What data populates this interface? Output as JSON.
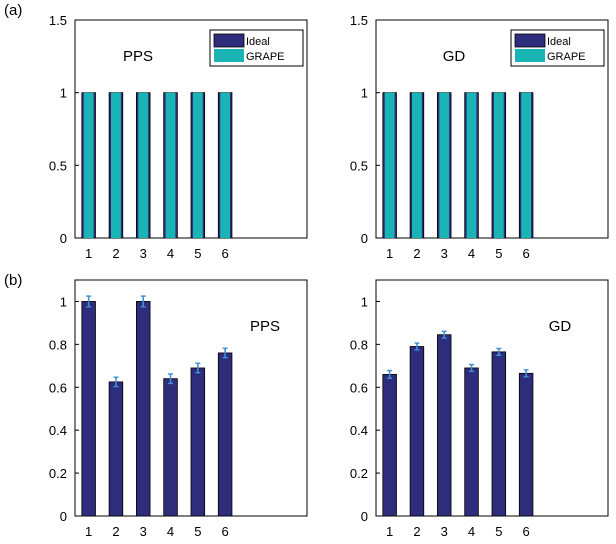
{
  "figure": {
    "panel_labels": [
      "(a)",
      "(b)"
    ]
  },
  "colors": {
    "ideal": "#2e2d7c",
    "grape": "#19b5b5",
    "error_bar": "#3f8fd8",
    "axis": "#000000"
  },
  "chart_data": [
    {
      "type": "bar",
      "inset_label": "PPS",
      "categories": [
        "1",
        "2",
        "3",
        "4",
        "5",
        "6"
      ],
      "xlim": [
        0.5,
        9
      ],
      "ylim": [
        0,
        1.5
      ],
      "yticks": [
        0,
        0.5,
        1,
        1.5
      ],
      "ytick_labels": [
        "0",
        "0.5",
        "1",
        "1.5"
      ],
      "legend": {
        "position": "top-right",
        "entries": [
          "Ideal",
          "GRAPE"
        ]
      },
      "series": [
        {
          "name": "Ideal",
          "values": [
            1,
            1,
            1,
            1,
            1,
            1
          ]
        },
        {
          "name": "GRAPE",
          "values": [
            1,
            1,
            1,
            1,
            1,
            1
          ]
        }
      ]
    },
    {
      "type": "bar",
      "inset_label": "GD",
      "categories": [
        "1",
        "2",
        "3",
        "4",
        "5",
        "6"
      ],
      "xlim": [
        0.5,
        9
      ],
      "ylim": [
        0,
        1.5
      ],
      "yticks": [
        0,
        0.5,
        1,
        1.5
      ],
      "ytick_labels": [
        "0",
        "0.5",
        "1",
        "1.5"
      ],
      "legend": {
        "position": "top-right",
        "entries": [
          "Ideal",
          "GRAPE"
        ]
      },
      "series": [
        {
          "name": "Ideal",
          "values": [
            1,
            1,
            1,
            1,
            1,
            1
          ]
        },
        {
          "name": "GRAPE",
          "values": [
            1,
            1,
            1,
            1,
            1,
            1
          ]
        }
      ]
    },
    {
      "type": "bar",
      "inset_label": "PPS",
      "categories": [
        "1",
        "2",
        "3",
        "4",
        "5",
        "6"
      ],
      "xlim": [
        0.5,
        9
      ],
      "ylim": [
        0,
        1.1
      ],
      "yticks": [
        0,
        0.2,
        0.4,
        0.6,
        0.8,
        1
      ],
      "ytick_labels": [
        "0",
        "0.2",
        "0.4",
        "0.6",
        "0.8",
        "1"
      ],
      "series": [
        {
          "values": [
            1.0,
            0.625,
            1.0,
            0.64,
            0.69,
            0.76
          ],
          "errors": [
            0.025,
            0.022,
            0.025,
            0.022,
            0.022,
            0.022
          ]
        }
      ]
    },
    {
      "type": "bar",
      "inset_label": "GD",
      "categories": [
        "1",
        "2",
        "3",
        "4",
        "5",
        "6"
      ],
      "xlim": [
        0.5,
        9
      ],
      "ylim": [
        0,
        1.1
      ],
      "yticks": [
        0,
        0.2,
        0.4,
        0.6,
        0.8,
        1
      ],
      "ytick_labels": [
        "0",
        "0.2",
        "0.4",
        "0.6",
        "0.8",
        "1"
      ],
      "series": [
        {
          "values": [
            0.66,
            0.79,
            0.845,
            0.69,
            0.765,
            0.665
          ],
          "errors": [
            0.018,
            0.016,
            0.016,
            0.016,
            0.016,
            0.016
          ]
        }
      ]
    }
  ]
}
